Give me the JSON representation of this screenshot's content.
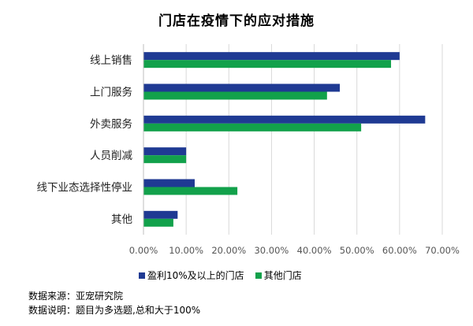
{
  "chart_data": {
    "type": "bar",
    "orientation": "horizontal",
    "title": "门店在疫情下的应对措施",
    "categories": [
      "线上销售",
      "上门服务",
      "外卖服务",
      "人员削减",
      "线下业态选择性停业",
      "其他"
    ],
    "series": [
      {
        "name": "盈利10%及以上的门店",
        "color": "#1f3a93",
        "values": [
          60,
          46,
          66,
          10,
          12,
          8
        ]
      },
      {
        "name": "其他门店",
        "color": "#12a14b",
        "values": [
          58,
          43,
          51,
          10,
          22,
          7
        ]
      }
    ],
    "x_ticks": [
      "0.00%",
      "10.00%",
      "20.00%",
      "30.00%",
      "40.00%",
      "50.00%",
      "60.00%",
      "70.00%"
    ],
    "xlim": [
      0,
      70
    ],
    "grid": true,
    "legend_position": "bottom"
  },
  "notes": {
    "source": "数据来源：亚宠研究院",
    "explanation": "数据说明：题目为多选题,总和大于100%"
  }
}
